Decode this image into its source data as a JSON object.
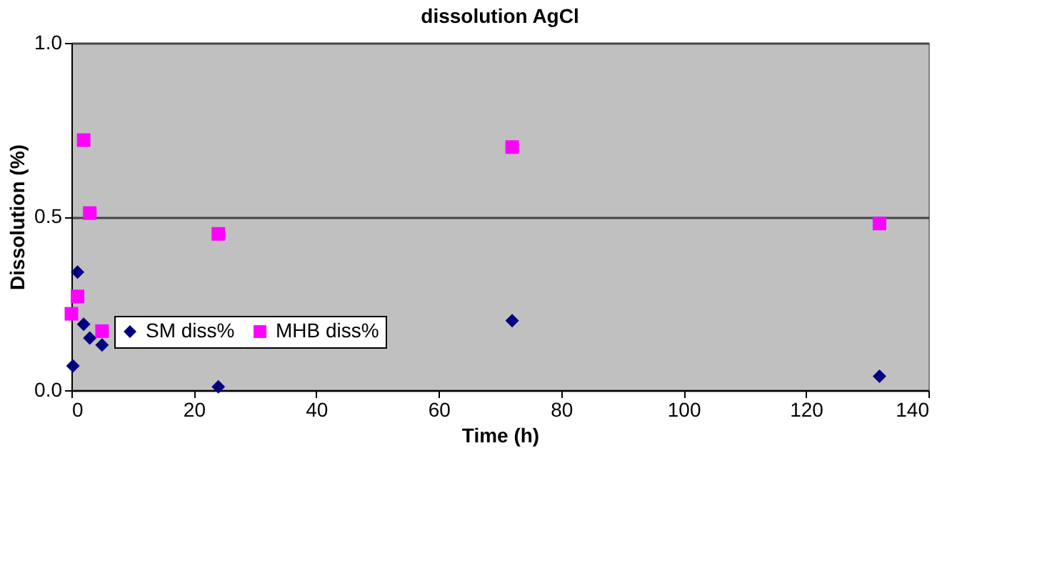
{
  "chart_data": {
    "type": "scatter",
    "title": "dissolution AgCl",
    "xlabel": "Time (h)",
    "ylabel": "Dissolution (%)",
    "xlim": [
      0,
      140
    ],
    "xticks": [
      0,
      20,
      40,
      60,
      80,
      100,
      120,
      140
    ],
    "ylim": [
      0,
      1
    ],
    "yticks": [
      {
        "value": 0,
        "label": "0.0"
      },
      {
        "value": 0.5,
        "label": "0.5"
      },
      {
        "value": 1,
        "label": "1.0"
      }
    ],
    "grid": "y",
    "legend": "bottom left",
    "series": [
      {
        "name": "SM diss%",
        "color": "#000080",
        "marker": "diamond",
        "x": [
          0.25,
          1,
          2,
          3,
          5,
          24,
          72,
          132
        ],
        "values": [
          0.07,
          0.34,
          0.19,
          0.15,
          0.13,
          0.01,
          0.2,
          0.04
        ]
      },
      {
        "name": "MHB diss%",
        "color": "#ff00ff",
        "marker": "square",
        "x": [
          0,
          1,
          2,
          3,
          5,
          24,
          72,
          132
        ],
        "values": [
          0.22,
          0.27,
          0.72,
          0.51,
          0.17,
          0.45,
          0.7,
          0.48
        ]
      }
    ]
  }
}
